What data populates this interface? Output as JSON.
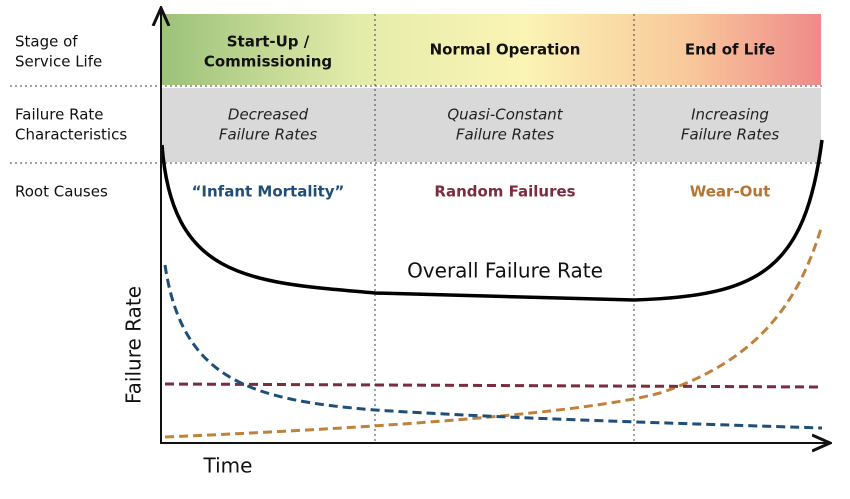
{
  "row_labels": [
    [
      "Stage of",
      "Service Life"
    ],
    [
      "Failure Rate",
      "Characteristics"
    ],
    [
      "Root Causes"
    ]
  ],
  "phases": [
    {
      "title": [
        "Start-Up /",
        "Commissioning"
      ],
      "characteristics": [
        "Decreased",
        "Failure Rates"
      ],
      "root_cause": "“Infant Mortality”"
    },
    {
      "title": [
        "Normal Operation"
      ],
      "characteristics": [
        "Quasi-Constant",
        "Failure Rates"
      ],
      "root_cause": "Random Failures"
    },
    {
      "title": [
        "End of Life"
      ],
      "characteristics": [
        "Increasing",
        "Failure Rates"
      ],
      "root_cause": "Wear-Out"
    }
  ],
  "curve_label": "Overall Failure Rate",
  "y_axis_label": "Failure Rate",
  "x_axis_label": "Time"
}
